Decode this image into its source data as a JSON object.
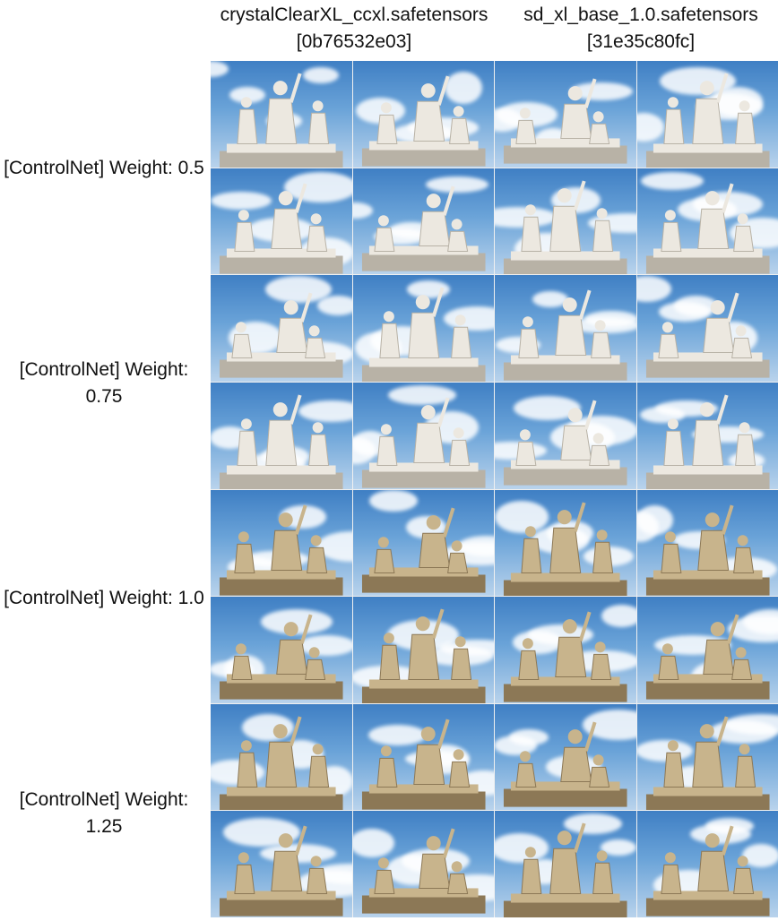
{
  "columns": [
    {
      "name": "crystalClearXL_ccxl.safetensors",
      "hash": "[0b76532e03]"
    },
    {
      "name": "sd_xl_base_1.0.safetensors",
      "hash": "[31e35c80fc]"
    }
  ],
  "rows": [
    {
      "label_line1": "[ControlNet] Weight: 0.5",
      "label_line2": ""
    },
    {
      "label_line1": "[ControlNet] Weight:",
      "label_line2": "0.75"
    },
    {
      "label_line1": "[ControlNet] Weight: 1.0",
      "label_line2": ""
    },
    {
      "label_line1": "[ControlNet] Weight:",
      "label_line2": "1.25"
    }
  ],
  "colors": {
    "sky_top": "#3f7fc4",
    "sky_bottom": "#b9d3ec",
    "statue_white": "#ece8e0",
    "statue_bronze": "#c8b48c"
  }
}
